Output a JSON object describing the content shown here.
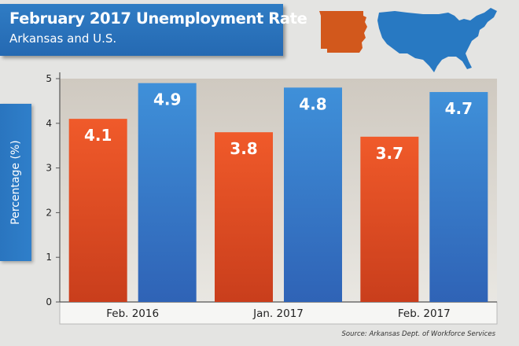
{
  "header": {
    "title": "February 2017 Unemployment Rate",
    "subtitle": "Arkansas and U.S."
  },
  "icons": {
    "state_map": "arkansas-map-icon",
    "country_map": "us-map-icon"
  },
  "footer": {
    "source": "Source: Arkansas Dept. of Workforce Services"
  },
  "colors": {
    "arkansas": "#e8572a",
    "us": "#3a87d0",
    "header_blue": "#2a72bb"
  },
  "chart_data": {
    "type": "bar",
    "title": "February 2017 Unemployment Rate",
    "subtitle": "Arkansas and U.S.",
    "ylabel": "Percentage (%)",
    "xlabel": "",
    "categories": [
      "Feb. 2016",
      "Jan. 2017",
      "Feb. 2017"
    ],
    "series": [
      {
        "values": [
          4.1,
          3.8,
          3.7
        ],
        "color": "#e8572a"
      },
      {
        "values": [
          4.9,
          4.8,
          4.7
        ],
        "color": "#3a87d0"
      }
    ],
    "ylim": [
      0,
      5
    ],
    "yticks": [
      0,
      1,
      2,
      3,
      4,
      5
    ],
    "grid": false,
    "legend": "none"
  }
}
